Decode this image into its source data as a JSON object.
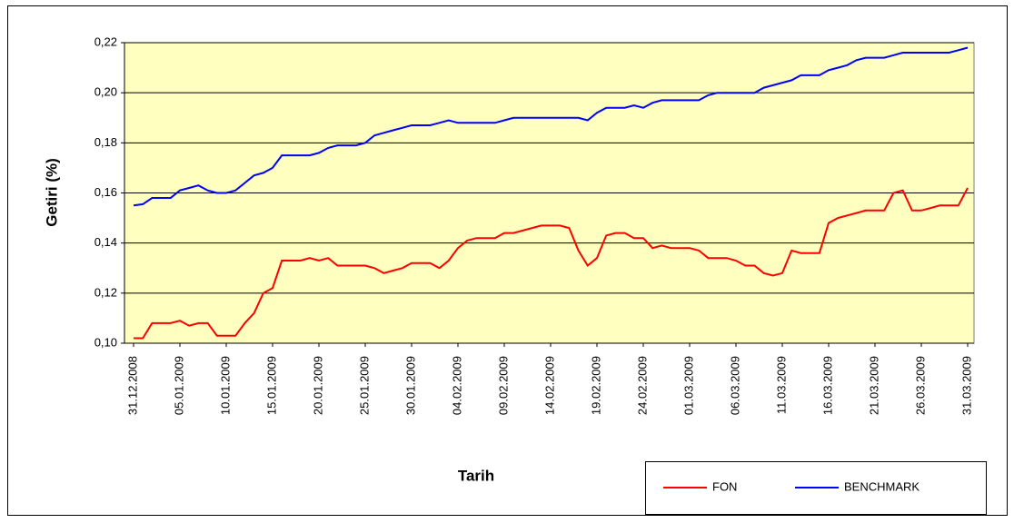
{
  "chart_data": {
    "type": "line",
    "x_label": "Tarih",
    "y_label": "Getiri (%)",
    "categories": [
      "31.12.2008",
      null,
      null,
      null,
      null,
      "05.01.2009",
      null,
      null,
      null,
      null,
      "10.01.2009",
      null,
      null,
      null,
      null,
      "15.01.2009",
      null,
      null,
      null,
      null,
      "20.01.2009",
      null,
      null,
      null,
      null,
      "25.01.2009",
      null,
      null,
      null,
      null,
      "30.01.2009",
      null,
      null,
      null,
      null,
      "04.02.2009",
      null,
      null,
      null,
      null,
      "09.02.2009",
      null,
      null,
      null,
      null,
      "14.02.2009",
      null,
      null,
      null,
      null,
      "19.02.2009",
      null,
      null,
      null,
      null,
      "24.02.2009",
      null,
      null,
      null,
      null,
      "01.03.2009",
      null,
      null,
      null,
      null,
      "06.03.2009",
      null,
      null,
      null,
      null,
      "11.03.2009",
      null,
      null,
      null,
      null,
      "16.03.2009",
      null,
      null,
      null,
      null,
      "21.03.2009",
      null,
      null,
      null,
      null,
      "26.03.2009",
      null,
      null,
      null,
      null,
      "31.03.2009"
    ],
    "series": [
      {
        "name": "FON",
        "color": "#ff0000",
        "values": [
          0.102,
          0.102,
          0.108,
          0.108,
          0.108,
          0.109,
          0.107,
          0.108,
          0.108,
          0.103,
          0.103,
          0.103,
          0.108,
          0.112,
          0.12,
          0.122,
          0.133,
          0.133,
          0.133,
          0.134,
          0.133,
          0.134,
          0.131,
          0.131,
          0.131,
          0.131,
          0.13,
          0.128,
          0.129,
          0.13,
          0.132,
          0.132,
          0.132,
          0.13,
          0.133,
          0.138,
          0.141,
          0.142,
          0.142,
          0.142,
          0.144,
          0.144,
          0.145,
          0.146,
          0.147,
          0.147,
          0.147,
          0.146,
          0.137,
          0.131,
          0.134,
          0.143,
          0.144,
          0.144,
          0.142,
          0.142,
          0.138,
          0.139,
          0.138,
          0.138,
          0.138,
          0.137,
          0.134,
          0.134,
          0.134,
          0.133,
          0.131,
          0.131,
          0.128,
          0.127,
          0.128,
          0.137,
          0.136,
          0.136,
          0.136,
          0.148,
          0.15,
          0.151,
          0.152,
          0.153,
          0.153,
          0.153,
          0.16,
          0.161,
          0.153,
          0.153,
          0.154,
          0.155,
          0.155,
          0.155,
          0.162
        ]
      },
      {
        "name": "BENCHMARK",
        "color": "#0000ff",
        "values": [
          0.155,
          0.1555,
          0.158,
          0.158,
          0.158,
          0.161,
          0.162,
          0.163,
          0.161,
          0.16,
          0.16,
          0.161,
          0.164,
          0.167,
          0.168,
          0.17,
          0.175,
          0.175,
          0.175,
          0.175,
          0.176,
          0.178,
          0.179,
          0.179,
          0.179,
          0.18,
          0.183,
          0.184,
          0.185,
          0.186,
          0.187,
          0.187,
          0.187,
          0.188,
          0.189,
          0.188,
          0.188,
          0.188,
          0.188,
          0.188,
          0.189,
          0.19,
          0.19,
          0.19,
          0.19,
          0.19,
          0.19,
          0.19,
          0.19,
          0.189,
          0.192,
          0.194,
          0.194,
          0.194,
          0.195,
          0.194,
          0.196,
          0.197,
          0.197,
          0.197,
          0.197,
          0.197,
          0.199,
          0.2,
          0.2,
          0.2,
          0.2,
          0.2,
          0.202,
          0.203,
          0.204,
          0.205,
          0.207,
          0.207,
          0.207,
          0.209,
          0.21,
          0.211,
          0.213,
          0.214,
          0.214,
          0.214,
          0.215,
          0.216,
          0.216,
          0.216,
          0.216,
          0.216,
          0.216,
          0.217,
          0.218
        ]
      }
    ],
    "ylim": [
      0.1,
      0.22
    ],
    "yticks": [
      {
        "value": 0.1,
        "label": "0,10"
      },
      {
        "value": 0.12,
        "label": "0,12"
      },
      {
        "value": 0.14,
        "label": "0,14"
      },
      {
        "value": 0.16,
        "label": "0,16"
      },
      {
        "value": 0.18,
        "label": "0,18"
      },
      {
        "value": 0.2,
        "label": "0,20"
      },
      {
        "value": 0.22,
        "label": "0,22"
      }
    ],
    "grid": true,
    "legend": "bottom-right"
  }
}
